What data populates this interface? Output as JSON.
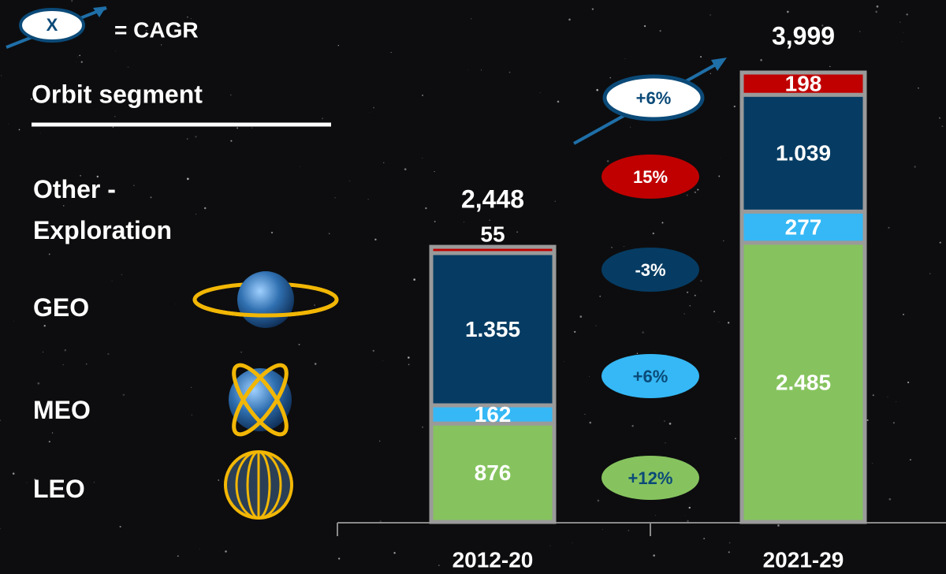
{
  "chart_data": {
    "type": "bar",
    "stacked": true,
    "key_symbol": "X",
    "key_text": "= CAGR",
    "legend_title": "Orbit segment",
    "categories": [
      "2012-20",
      "2021-29"
    ],
    "series": [
      {
        "name": "LEO",
        "color": "#86c35e",
        "values": [
          876,
          2485
        ],
        "value_labels": [
          "876",
          "2.485"
        ],
        "cagr": 12,
        "cagr_label": "+12%",
        "cagr_text_color": "#0b4a78"
      },
      {
        "name": "MEO",
        "color": "#35b8f5",
        "values": [
          162,
          277
        ],
        "value_labels": [
          "162",
          "277"
        ],
        "cagr": 6,
        "cagr_label": "+6%",
        "cagr_text_color": "#0b4a78"
      },
      {
        "name": "GEO",
        "color": "#063c63",
        "values": [
          1355,
          1039
        ],
        "value_labels": [
          "1.355",
          "1.039"
        ],
        "cagr": -3,
        "cagr_label": "-3%",
        "cagr_text_color": "#ffffff"
      },
      {
        "name": "Other - Exploration",
        "color": "#c00000",
        "values": [
          55,
          198
        ],
        "value_labels": [
          "55",
          "198"
        ],
        "cagr": 15,
        "cagr_label": "15%",
        "cagr_text_color": "#ffffff"
      }
    ],
    "totals": [
      2448,
      3999
    ],
    "total_labels": [
      "2,448",
      "3,999"
    ],
    "total_cagr": 6,
    "total_cagr_label": "+6%"
  }
}
